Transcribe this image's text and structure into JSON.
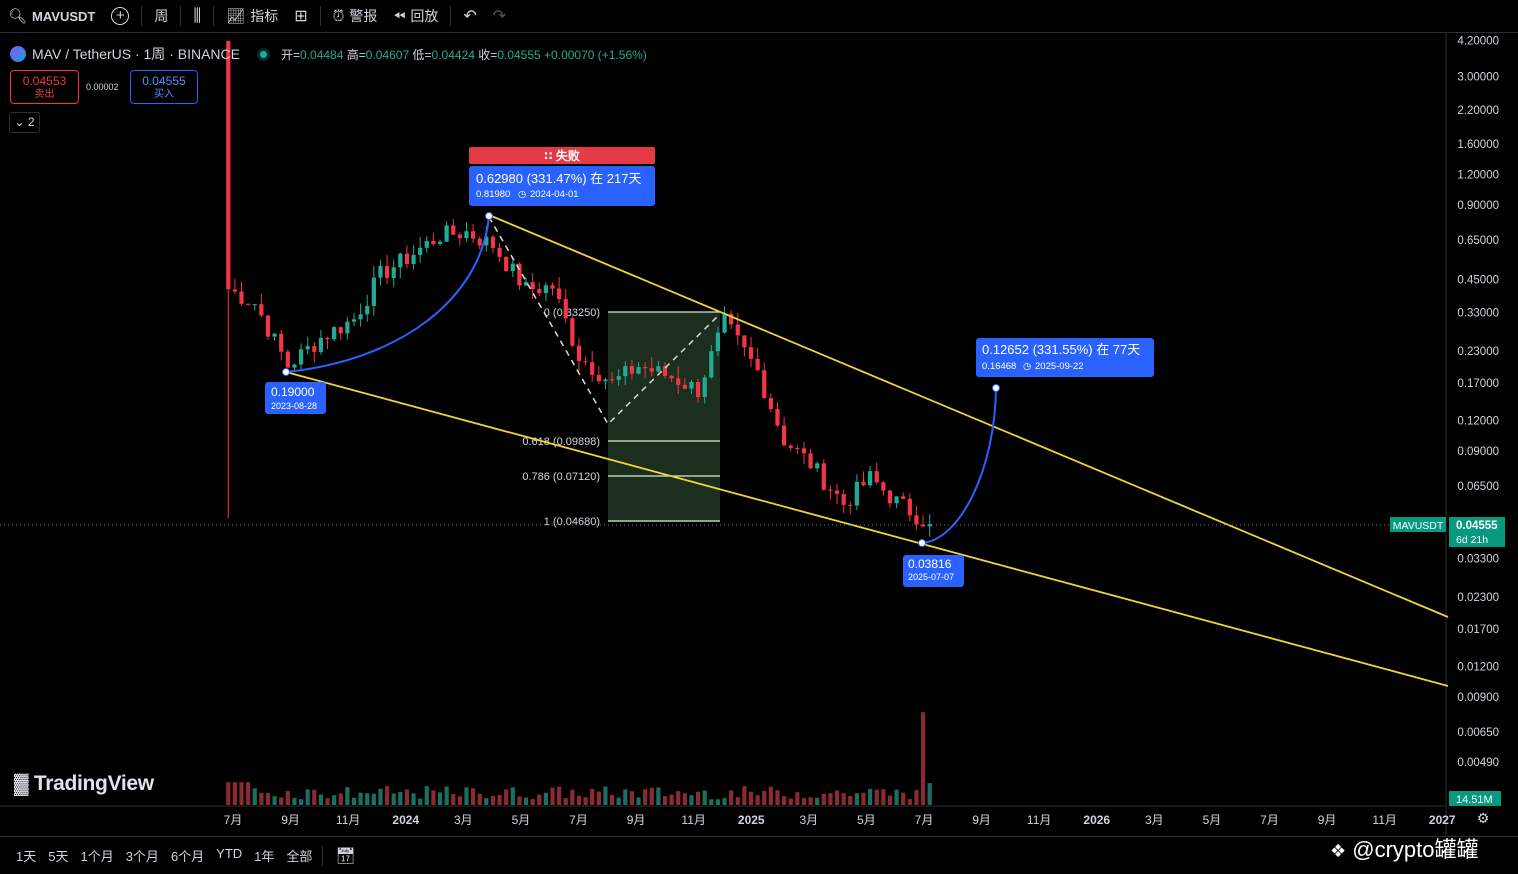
{
  "toolbar": {
    "symbol": "MAVUSDT",
    "interval": "周",
    "indicators": "指标",
    "alerts": "警报",
    "replay": "回放"
  },
  "legend": {
    "title": "MAV / TetherUS · 1周 · BINANCE",
    "open_label": "开",
    "open": "0.04484",
    "high_label": "高",
    "high": "0.04607",
    "low_label": "低",
    "low": "0.04424",
    "close_label": "收",
    "close": "0.04555",
    "change": "+0.00070 (+1.56%)"
  },
  "trade": {
    "sell_price": "0.04553",
    "sell_label": "卖出",
    "spread": "0.00002",
    "buy_price": "0.04555",
    "buy_label": "买入",
    "collapse_count": "2"
  },
  "bottom": {
    "ranges": [
      "1天",
      "5天",
      "1个月",
      "3个月",
      "6个月",
      "YTD",
      "1年",
      "全部"
    ],
    "logo": "TradingView",
    "watermark": "@crypto罐罐"
  },
  "colors": {
    "up": "#22ab94",
    "down": "#f23645",
    "trendline": "#f0d33a",
    "curve": "#2962ff",
    "label_bg": "#2962ff",
    "fail_bg": "#e53945",
    "fib_zone": "#1f3320",
    "fib_line": "#d9ead3"
  },
  "chart_data": {
    "type": "candlestick",
    "scale": "log",
    "x_tick_labels": [
      "7月",
      "9月",
      "11月",
      "2024",
      "3月",
      "5月",
      "7月",
      "9月",
      "11月",
      "2025",
      "3月",
      "5月",
      "7月",
      "9月",
      "11月",
      "2026",
      "3月",
      "5月",
      "7月",
      "9月",
      "11月",
      "2027"
    ],
    "y_tick_labels": [
      "4.20000",
      "3.00000",
      "2.20000",
      "1.60000",
      "1.20000",
      "0.90000",
      "0.65000",
      "0.45000",
      "0.33000",
      "0.23000",
      "0.17000",
      "0.12000",
      "0.09000",
      "0.06500",
      "0.03300",
      "0.02300",
      "0.01700",
      "0.01200",
      "0.00900",
      "0.00650",
      "0.00490"
    ],
    "current_price": {
      "symbol": "MAVUSDT",
      "value": "0.04555",
      "countdown": "6d 21h"
    },
    "volume_label": "14.51M",
    "weekly_closes": [
      {
        "date": "2023-06-26",
        "close": 0.41
      },
      {
        "date": "2023-07-24",
        "close": 0.36
      },
      {
        "date": "2023-08-28",
        "close": 0.2
      },
      {
        "date": "2023-10-02",
        "close": 0.26
      },
      {
        "date": "2023-11-06",
        "close": 0.31
      },
      {
        "date": "2023-12-04",
        "close": 0.47
      },
      {
        "date": "2024-01-01",
        "close": 0.55
      },
      {
        "date": "2024-02-05",
        "close": 0.68
      },
      {
        "date": "2024-03-04",
        "close": 0.7
      },
      {
        "date": "2024-04-01",
        "close": 0.62
      },
      {
        "date": "2024-05-06",
        "close": 0.41
      },
      {
        "date": "2024-06-03",
        "close": 0.42
      },
      {
        "date": "2024-07-01",
        "close": 0.22
      },
      {
        "date": "2024-08-05",
        "close": 0.17
      },
      {
        "date": "2024-09-02",
        "close": 0.2
      },
      {
        "date": "2024-10-07",
        "close": 0.18
      },
      {
        "date": "2024-11-04",
        "close": 0.16
      },
      {
        "date": "2024-12-02",
        "close": 0.3
      },
      {
        "date": "2025-01-06",
        "close": 0.19
      },
      {
        "date": "2025-02-03",
        "close": 0.1
      },
      {
        "date": "2025-03-03",
        "close": 0.08
      },
      {
        "date": "2025-04-07",
        "close": 0.055
      },
      {
        "date": "2025-05-05",
        "close": 0.07
      },
      {
        "date": "2025-06-02",
        "close": 0.056
      },
      {
        "date": "2025-07-07",
        "close": 0.04555
      }
    ],
    "annotations": {
      "low_label": {
        "price": "0.19000",
        "date": "2023-08-28"
      },
      "high_label": {
        "status": "∷ 失败",
        "change": "0.62980 (331.47%) 在 217天",
        "price": "0.81980",
        "date": "2024-04-01"
      },
      "bottom_label": {
        "price": "0.03816",
        "date": "2025-07-07"
      },
      "target_label": {
        "change": "0.12652 (331.55%) 在 77天",
        "price": "0.16468",
        "date": "2025-09-22"
      }
    },
    "fibonacci": [
      {
        "level": "0 (0.33250)"
      },
      {
        "level": "0.618 (0.09898)"
      },
      {
        "level": "0.786 (0.07120)"
      },
      {
        "level": "1 (0.04680)"
      }
    ]
  }
}
